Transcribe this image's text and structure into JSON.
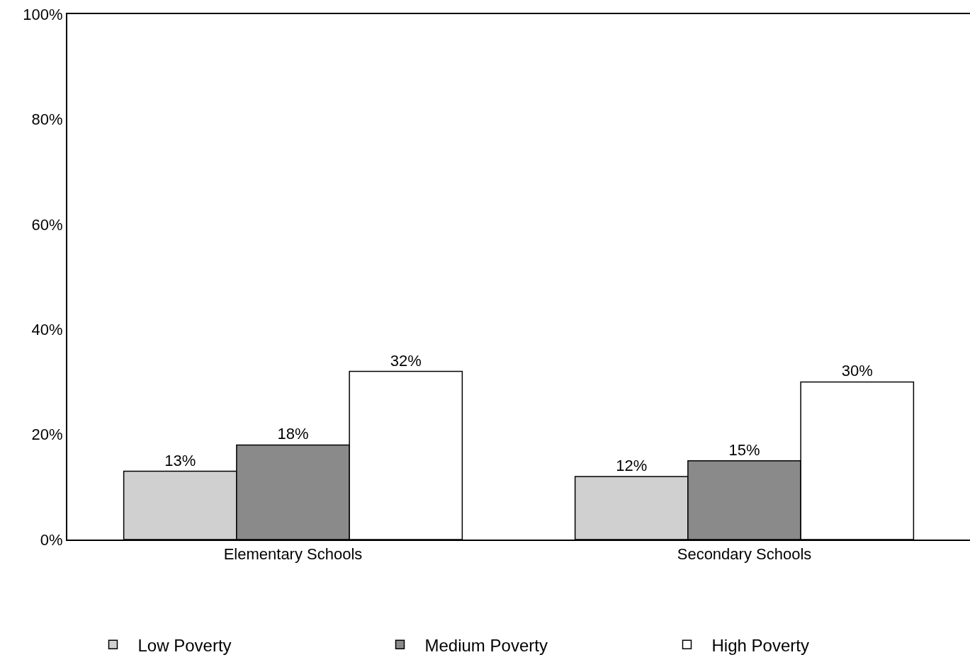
{
  "chart_data": {
    "type": "bar",
    "categories": [
      "Elementary Schools",
      "Secondary Schools"
    ],
    "series": [
      {
        "name": "Low Poverty",
        "color": "#d0d0d0",
        "values": [
          13,
          12
        ],
        "value_labels": [
          "13%",
          "12%"
        ]
      },
      {
        "name": "Medium Poverty",
        "color": "#8a8a8a",
        "values": [
          18,
          15
        ],
        "value_labels": [
          "18%",
          "15%"
        ]
      },
      {
        "name": "High Poverty",
        "color": "#ffffff",
        "values": [
          32,
          30
        ],
        "value_labels": [
          "32%",
          "30%"
        ]
      }
    ],
    "ylim": [
      0,
      100
    ],
    "yticks": [
      {
        "value": 0,
        "label": "0%"
      },
      {
        "value": 20,
        "label": "20%"
      },
      {
        "value": 40,
        "label": "40%"
      },
      {
        "value": 60,
        "label": "60%"
      },
      {
        "value": 80,
        "label": "80%"
      },
      {
        "value": 100,
        "label": "100%"
      }
    ],
    "grid": false,
    "legend": "bottom"
  }
}
